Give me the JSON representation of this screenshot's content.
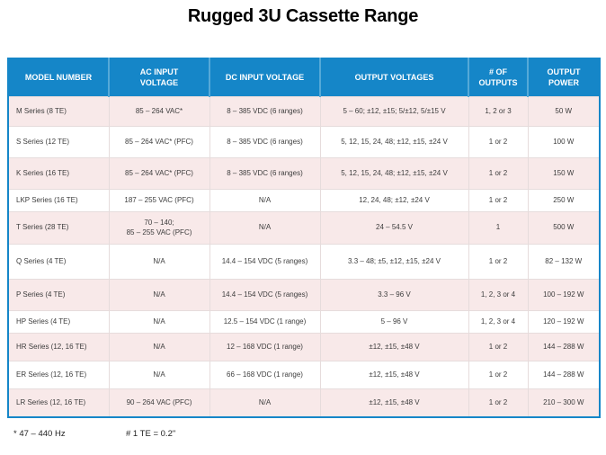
{
  "title": "Rugged 3U Cassette Range",
  "colors": {
    "header_bg": "#1586C8",
    "header_separator": "#55A9D8",
    "row_alt_bg": "#F8E9E9",
    "table_border": "#1586C8"
  },
  "table": {
    "columns": [
      "MODEL NUMBER",
      "AC INPUT\nVOLTAGE",
      "DC INPUT VOLTAGE",
      "OUTPUT VOLTAGES",
      "# OF\nOUTPUTS",
      "OUTPUT\nPOWER"
    ],
    "rows": [
      [
        "M Series (8 TE)",
        "85 – 264 VAC*",
        "8 – 385 VDC (6 ranges)",
        "5 – 60; ±12, ±15; 5/±12, 5/±15 V",
        "1, 2 or 3",
        "50 W"
      ],
      [
        "S Series (12 TE)",
        "85 – 264 VAC* (PFC)",
        "8 – 385 VDC (6 ranges)",
        "5, 12, 15, 24, 48; ±12, ±15, ±24 V",
        "1 or 2",
        "100 W"
      ],
      [
        "K Series (16 TE)",
        "85 – 264 VAC* (PFC)",
        "8 – 385 VDC (6 ranges)",
        "5, 12, 15, 24, 48; ±12, ±15, ±24 V",
        "1 or 2",
        "150 W"
      ],
      [
        "LKP Series (16 TE)",
        "187 – 255 VAC (PFC)",
        "N/A",
        "12, 24, 48; ±12, ±24 V",
        "1 or 2",
        "250 W"
      ],
      [
        "T Series (28 TE)",
        "70 – 140;\n85 – 255 VAC (PFC)",
        "N/A",
        "24 – 54.5 V",
        "1",
        "500 W"
      ],
      [
        "Q Series (4 TE)",
        "N/A",
        "14.4 – 154 VDC (5 ranges)",
        "3.3 – 48; ±5, ±12, ±15, ±24 V",
        "1 or 2",
        "82 – 132 W"
      ],
      [
        "P Series (4 TE)",
        "N/A",
        "14.4 – 154 VDC (5 ranges)",
        "3.3 – 96 V",
        "1, 2, 3 or 4",
        "100 – 192 W"
      ],
      [
        "HP Series (4 TE)",
        "N/A",
        "12.5 – 154 VDC (1 range)",
        "5 – 96 V",
        "1, 2, 3 or 4",
        "120 – 192 W"
      ],
      [
        "HR Series (12, 16 TE)",
        "N/A",
        "12 – 168 VDC (1 range)",
        "±12, ±15, ±48 V",
        "1 or 2",
        "144 – 288 W"
      ],
      [
        "ER Series (12, 16 TE)",
        "N/A",
        "66 – 168 VDC (1 range)",
        "±12, ±15, ±48 V",
        "1 or 2",
        "144 – 288 W"
      ],
      [
        "LR Series (12, 16 TE)",
        "90 – 264 VAC (PFC)",
        "N/A",
        "±12, ±15, ±48 V",
        "1 or 2",
        "210 – 300 W"
      ]
    ]
  },
  "footnotes": {
    "frequency": "* 47 – 440 Hz",
    "te_definition": "# 1 TE = 0.2\""
  }
}
